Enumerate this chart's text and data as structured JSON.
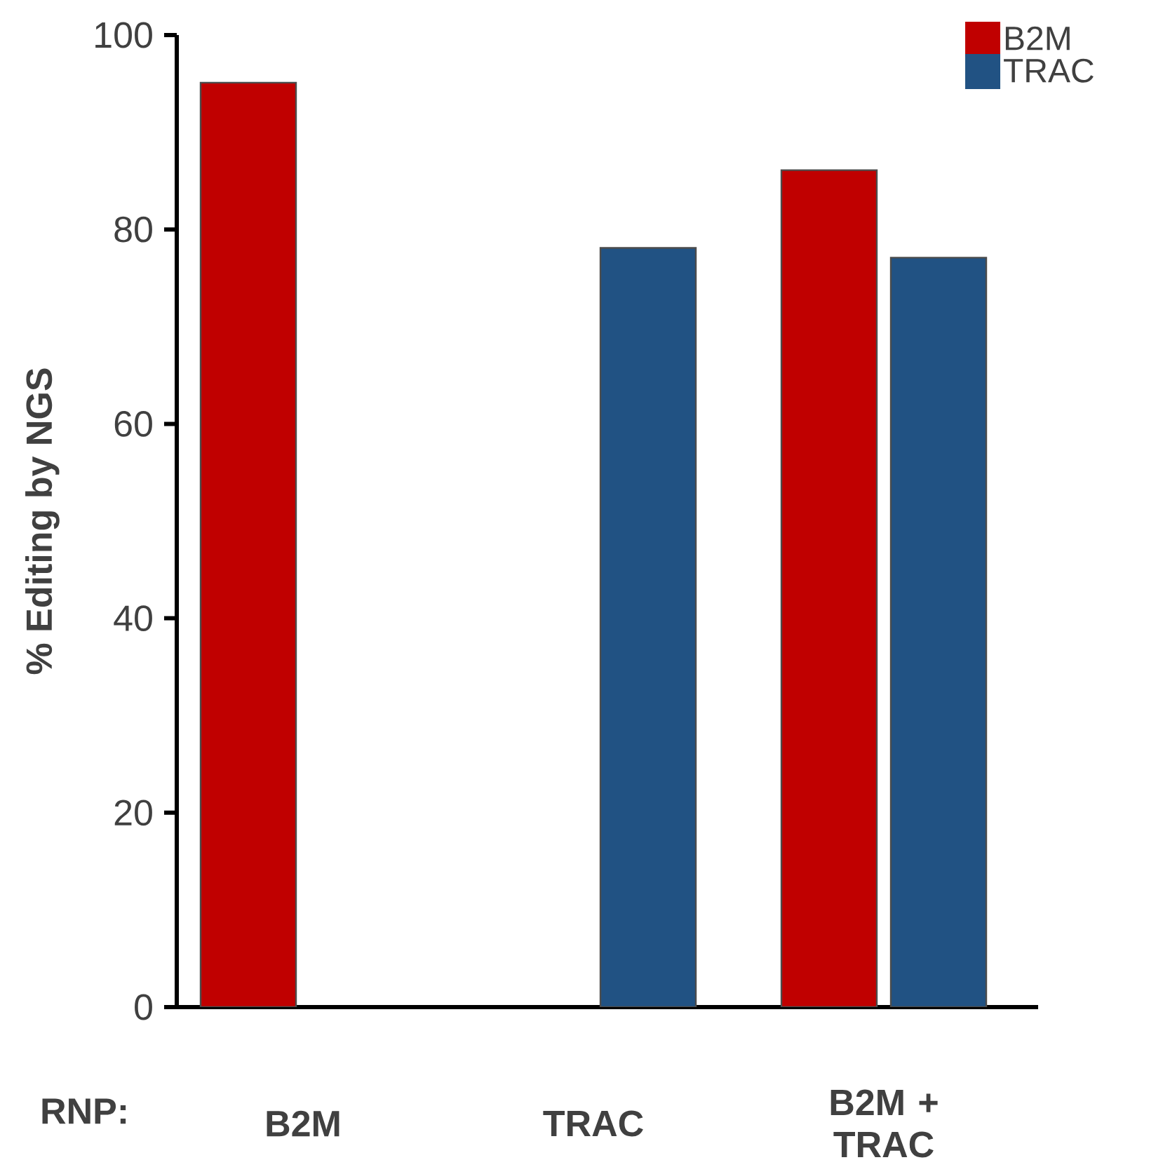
{
  "chart_data": {
    "type": "bar",
    "xlabel": "RNP:",
    "ylabel": "% Editing by NGS",
    "categories": [
      "B2M",
      "TRAC",
      "B2M + TRAC"
    ],
    "series": [
      {
        "name": "B2M",
        "color": "#c00000",
        "values": [
          95.1,
          null,
          86.1
        ]
      },
      {
        "name": "TRAC",
        "color": "#215283",
        "values": [
          null,
          78.1,
          77.1
        ]
      }
    ],
    "ylim": [
      0,
      100
    ],
    "yticks": [
      0,
      20,
      40,
      60,
      80,
      100
    ],
    "legend": "top right"
  }
}
